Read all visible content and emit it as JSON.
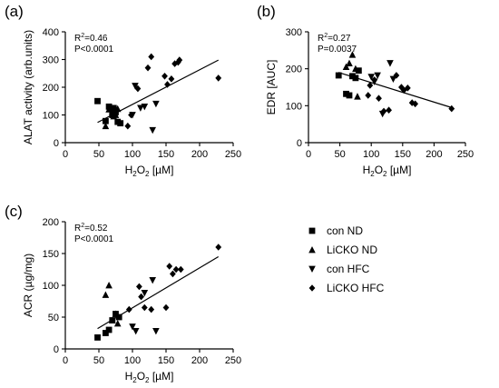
{
  "legend": [
    {
      "label": "con ND",
      "marker": "square"
    },
    {
      "label": "LiCKO ND",
      "marker": "triangle-up"
    },
    {
      "label": "con HFC",
      "marker": "triangle-down"
    },
    {
      "label": "LiCKO HFC",
      "marker": "diamond"
    }
  ],
  "chart_data": [
    {
      "type": "scatter",
      "panel": "(a)",
      "xlabel_base": "H",
      "xlabel_sub": "2",
      "xlabel_mid": "O",
      "xlabel_sub2": "2",
      "xlabel_unit": " [µM]",
      "ylabel": "ALAT activity (arb.units)",
      "xlim": [
        0,
        250
      ],
      "ylim": [
        0,
        400
      ],
      "xticks": [
        0,
        50,
        100,
        150,
        200,
        250
      ],
      "yticks": [
        0,
        100,
        200,
        300,
        400
      ],
      "annotation_r2_prefix": "R",
      "annotation_r2_sup": "2",
      "annotation_r2_value": "=0.46",
      "annotation_p": "P<0.0001",
      "fit": {
        "x": [
          48,
          228
        ],
        "y": [
          73,
          298
        ]
      },
      "series": [
        {
          "marker": "square",
          "points": [
            [
              48,
              150
            ],
            [
              60,
              78
            ],
            [
              65,
              130
            ],
            [
              70,
              100
            ],
            [
              72,
              125
            ],
            [
              75,
              110
            ],
            [
              78,
              75
            ],
            [
              82,
              70
            ]
          ]
        },
        {
          "marker": "triangle-up",
          "points": [
            [
              60,
              60
            ],
            [
              65,
              120
            ],
            [
              70,
              112
            ],
            [
              72,
              95
            ],
            [
              75,
              100
            ],
            [
              78,
              122
            ]
          ]
        },
        {
          "marker": "triangle-down",
          "points": [
            [
              100,
              100
            ],
            [
              104,
              205
            ],
            [
              112,
              125
            ],
            [
              118,
              130
            ],
            [
              130,
              45
            ],
            [
              135,
              140
            ]
          ]
        },
        {
          "marker": "diamond",
          "points": [
            [
              93,
              60
            ],
            [
              98,
              100
            ],
            [
              108,
              195
            ],
            [
              123,
              270
            ],
            [
              128,
              310
            ],
            [
              148,
              240
            ],
            [
              152,
              210
            ],
            [
              158,
              230
            ],
            [
              163,
              285
            ],
            [
              168,
              290
            ],
            [
              170,
              298
            ],
            [
              228,
              233
            ]
          ]
        }
      ]
    },
    {
      "type": "scatter",
      "panel": "(b)",
      "xlabel_base": "H",
      "xlabel_sub": "2",
      "xlabel_mid": "O",
      "xlabel_sub2": "2",
      "xlabel_unit": " [µM]",
      "ylabel": "EDR [AUC]",
      "xlim": [
        0,
        250
      ],
      "ylim": [
        0,
        300
      ],
      "xticks": [
        0,
        50,
        100,
        150,
        200,
        250
      ],
      "yticks": [
        0,
        100,
        200,
        300
      ],
      "annotation_r2_prefix": "R",
      "annotation_r2_sup": "2",
      "annotation_r2_value": "=0.27",
      "annotation_p": "P=0.0037",
      "fit": {
        "x": [
          48,
          228
        ],
        "y": [
          190,
          95
        ]
      },
      "series": [
        {
          "marker": "square",
          "points": [
            [
              48,
              182
            ],
            [
              60,
              132
            ],
            [
              65,
              128
            ],
            [
              70,
              180
            ],
            [
              75,
              175
            ],
            [
              80,
              195
            ]
          ]
        },
        {
          "marker": "triangle-up",
          "points": [
            [
              60,
              205
            ],
            [
              65,
              215
            ],
            [
              70,
              238
            ],
            [
              75,
              200
            ],
            [
              78,
              125
            ]
          ]
        },
        {
          "marker": "triangle-down",
          "points": [
            [
              100,
              178
            ],
            [
              105,
              165
            ],
            [
              110,
              182
            ],
            [
              118,
              78
            ],
            [
              130,
              215
            ],
            [
              135,
              172
            ]
          ]
        },
        {
          "marker": "diamond",
          "points": [
            [
              95,
              128
            ],
            [
              98,
              155
            ],
            [
              105,
              170
            ],
            [
              112,
              120
            ],
            [
              120,
              85
            ],
            [
              128,
              88
            ],
            [
              140,
              182
            ],
            [
              148,
              150
            ],
            [
              152,
              142
            ],
            [
              158,
              148
            ],
            [
              165,
              108
            ],
            [
              170,
              105
            ],
            [
              228,
              92
            ]
          ]
        }
      ]
    },
    {
      "type": "scatter",
      "panel": "(c)",
      "xlabel_base": "H",
      "xlabel_sub": "2",
      "xlabel_mid": "O",
      "xlabel_sub2": "2",
      "xlabel_unit": " [µM]",
      "ylabel": "ACR (µg/mg)",
      "xlim": [
        0,
        250
      ],
      "ylim": [
        0,
        200
      ],
      "xticks": [
        0,
        50,
        100,
        150,
        200,
        250
      ],
      "yticks": [
        0,
        50,
        100,
        150,
        200
      ],
      "annotation_r2_prefix": "R",
      "annotation_r2_sup": "2",
      "annotation_r2_value": "=0.52",
      "annotation_p": "P<0.0001",
      "fit": {
        "x": [
          48,
          228
        ],
        "y": [
          32,
          145
        ]
      },
      "series": [
        {
          "marker": "square",
          "points": [
            [
              48,
              18
            ],
            [
              60,
              25
            ],
            [
              65,
              30
            ],
            [
              70,
              45
            ],
            [
              75,
              55
            ],
            [
              80,
              50
            ]
          ]
        },
        {
          "marker": "triangle-up",
          "points": [
            [
              60,
              85
            ],
            [
              65,
              100
            ],
            [
              70,
              45
            ],
            [
              75,
              55
            ],
            [
              78,
              40
            ]
          ]
        },
        {
          "marker": "triangle-down",
          "points": [
            [
              100,
              35
            ],
            [
              105,
              28
            ],
            [
              118,
              88
            ],
            [
              130,
              108
            ],
            [
              135,
              28
            ]
          ]
        },
        {
          "marker": "diamond",
          "points": [
            [
              95,
              62
            ],
            [
              110,
              98
            ],
            [
              113,
              82
            ],
            [
              118,
              65
            ],
            [
              128,
              62
            ],
            [
              150,
              65
            ],
            [
              155,
              130
            ],
            [
              160,
              118
            ],
            [
              165,
              125
            ],
            [
              172,
              125
            ],
            [
              228,
              160
            ]
          ]
        }
      ]
    }
  ]
}
